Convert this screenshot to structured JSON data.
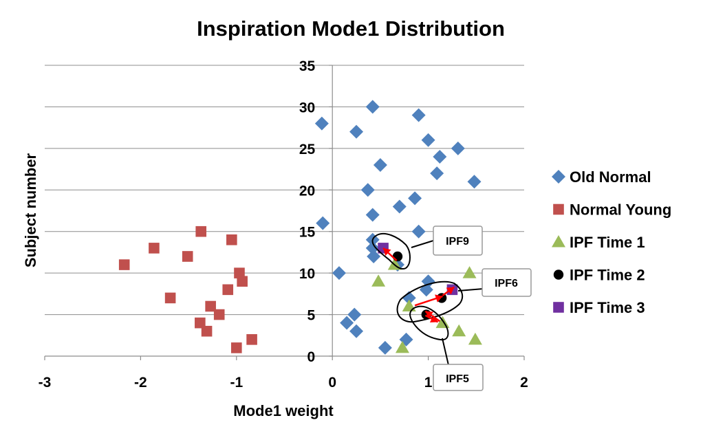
{
  "chart_data": {
    "type": "scatter",
    "title": "Inspiration Mode1 Distribution",
    "xlabel": "Mode1 weight",
    "ylabel": "Subject number",
    "xlim": [
      -3,
      2
    ],
    "ylim": [
      0,
      35
    ],
    "x_ticks": [
      "-3",
      "-2",
      "-1",
      "0",
      "1",
      "2"
    ],
    "y_ticks": [
      "0",
      "5",
      "10",
      "15",
      "20",
      "25",
      "30",
      "35"
    ],
    "grid": "horizontal",
    "legend_position": "right",
    "series": [
      {
        "name": "Old Normal",
        "color": "#4F81BD",
        "marker": "diamond",
        "points": [
          [
            0.55,
            1
          ],
          [
            0.77,
            2
          ],
          [
            0.25,
            3
          ],
          [
            0.15,
            4
          ],
          [
            0.23,
            5
          ],
          [
            0.8,
            7
          ],
          [
            0.98,
            8
          ],
          [
            1.0,
            9
          ],
          [
            0.07,
            10
          ],
          [
            0.68,
            11
          ],
          [
            0.43,
            12
          ],
          [
            0.42,
            13
          ],
          [
            0.42,
            14
          ],
          [
            0.9,
            15
          ],
          [
            -0.1,
            16
          ],
          [
            0.42,
            17
          ],
          [
            0.7,
            18
          ],
          [
            0.86,
            19
          ],
          [
            0.37,
            20
          ],
          [
            1.48,
            21
          ],
          [
            1.09,
            22
          ],
          [
            0.5,
            23
          ],
          [
            1.12,
            24
          ],
          [
            1.31,
            25
          ],
          [
            1.0,
            26
          ],
          [
            0.25,
            27
          ],
          [
            -0.11,
            28
          ],
          [
            0.9,
            29
          ],
          [
            0.42,
            30
          ]
        ]
      },
      {
        "name": "Normal Young",
        "color": "#C0504D",
        "marker": "square",
        "points": [
          [
            -1.0,
            1
          ],
          [
            -0.84,
            2
          ],
          [
            -1.31,
            3
          ],
          [
            -1.38,
            4
          ],
          [
            -1.18,
            5
          ],
          [
            -1.27,
            6
          ],
          [
            -1.69,
            7
          ],
          [
            -1.09,
            8
          ],
          [
            -0.94,
            9
          ],
          [
            -0.97,
            10
          ],
          [
            -2.17,
            11
          ],
          [
            -1.51,
            12
          ],
          [
            -1.86,
            13
          ],
          [
            -1.05,
            14
          ],
          [
            -1.37,
            15
          ]
        ]
      },
      {
        "name": "IPF Time 1",
        "color": "#9BBB59",
        "marker": "triangle",
        "points": [
          [
            0.73,
            1
          ],
          [
            1.49,
            2
          ],
          [
            1.32,
            3
          ],
          [
            1.15,
            4
          ],
          [
            0.8,
            6
          ],
          [
            0.48,
            9
          ],
          [
            1.43,
            10
          ],
          [
            0.65,
            11
          ]
        ]
      },
      {
        "name": "IPF Time 2",
        "color": "#000000",
        "marker": "circle",
        "points": [
          [
            0.98,
            5
          ],
          [
            1.14,
            7
          ],
          [
            0.68,
            12
          ]
        ]
      },
      {
        "name": "IPF Time 3",
        "color": "#7030A0",
        "marker": "square",
        "points": [
          [
            1.25,
            8
          ],
          [
            0.53,
            13
          ]
        ]
      }
    ],
    "annotations": [
      {
        "label": "IPF9"
      },
      {
        "label": "IPF6"
      },
      {
        "label": "IPF5"
      }
    ],
    "arrows": [
      {
        "from": [
          0.67,
          11.5
        ],
        "to": [
          0.53,
          13.0
        ]
      },
      {
        "from": [
          0.86,
          6.1
        ],
        "to": [
          1.15,
          7.2
        ]
      },
      {
        "from": [
          1.15,
          7.3
        ],
        "to": [
          1.27,
          8.3
        ]
      },
      {
        "from": [
          1.12,
          4.2
        ],
        "to": [
          0.97,
          5.4
        ]
      },
      {
        "from": [
          0.97,
          4.9
        ],
        "to": [
          1.1,
          4.1
        ]
      }
    ]
  }
}
